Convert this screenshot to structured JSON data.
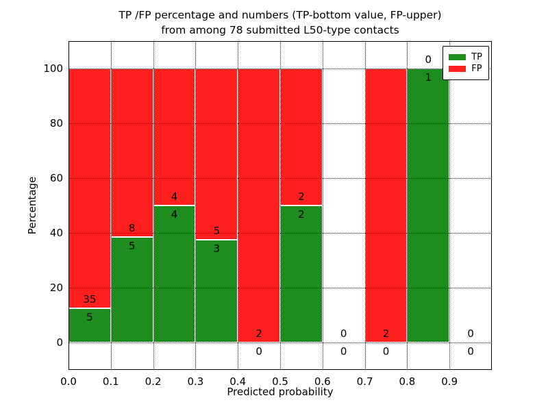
{
  "figure": {
    "title_line1": "TP /FP percentage and numbers (TP-bottom value, FP-upper)",
    "title_line2": "from among 78 submitted L50-type contacts",
    "xlabel": "Predicted probability",
    "ylabel": "Percentage"
  },
  "legend": {
    "items": [
      {
        "label": "TP",
        "color": "#1E8C1E"
      },
      {
        "label": "FP",
        "color": "#FF1F1F"
      }
    ]
  },
  "chart_data": {
    "type": "bar",
    "stacked": true,
    "units": "percent",
    "title": "TP /FP percentage and numbers (TP-bottom value, FP-upper) from among 78 submitted L50-type contacts",
    "xlabel": "Predicted probability",
    "ylabel": "Percentage",
    "xlim": [
      0.0,
      1.0
    ],
    "ylim": [
      -10,
      110
    ],
    "x_tick_labels": [
      "0.0",
      "0.1",
      "0.2",
      "0.3",
      "0.4",
      "0.5",
      "0.6",
      "0.7",
      "0.8",
      "0.9"
    ],
    "y_tick_values": [
      0,
      20,
      40,
      60,
      80,
      100
    ],
    "y_tick_labels": [
      "0",
      "20",
      "40",
      "60",
      "80",
      "100"
    ],
    "grid": true,
    "grid_over_bars": true,
    "legend_position": "upper right",
    "total_contacts": 78,
    "series": [
      {
        "name": "TP",
        "color": "#1E8C1E"
      },
      {
        "name": "FP",
        "color": "#FF1F1F"
      }
    ],
    "bins": [
      {
        "x0": 0.0,
        "x1": 0.1,
        "tp": 5,
        "fp": 35,
        "tp_pct": 12.5,
        "fp_pct": 87.5
      },
      {
        "x0": 0.1,
        "x1": 0.2,
        "tp": 5,
        "fp": 8,
        "tp_pct": 38.46,
        "fp_pct": 61.54
      },
      {
        "x0": 0.2,
        "x1": 0.3,
        "tp": 4,
        "fp": 4,
        "tp_pct": 50,
        "fp_pct": 50
      },
      {
        "x0": 0.3,
        "x1": 0.4,
        "tp": 3,
        "fp": 5,
        "tp_pct": 37.5,
        "fp_pct": 62.5
      },
      {
        "x0": 0.4,
        "x1": 0.5,
        "tp": 0,
        "fp": 2,
        "tp_pct": 0,
        "fp_pct": 100
      },
      {
        "x0": 0.5,
        "x1": 0.6,
        "tp": 2,
        "fp": 2,
        "tp_pct": 50,
        "fp_pct": 50
      },
      {
        "x0": 0.6,
        "x1": 0.7,
        "tp": 0,
        "fp": 0,
        "tp_pct": null,
        "fp_pct": null
      },
      {
        "x0": 0.7,
        "x1": 0.8,
        "tp": 0,
        "fp": 2,
        "tp_pct": 0,
        "fp_pct": 100
      },
      {
        "x0": 0.8,
        "x1": 0.9,
        "tp": 1,
        "fp": 0,
        "tp_pct": 100,
        "fp_pct": 0
      },
      {
        "x0": 0.9,
        "x1": 1.0,
        "tp": 0,
        "fp": 0,
        "tp_pct": null,
        "fp_pct": null
      }
    ]
  }
}
